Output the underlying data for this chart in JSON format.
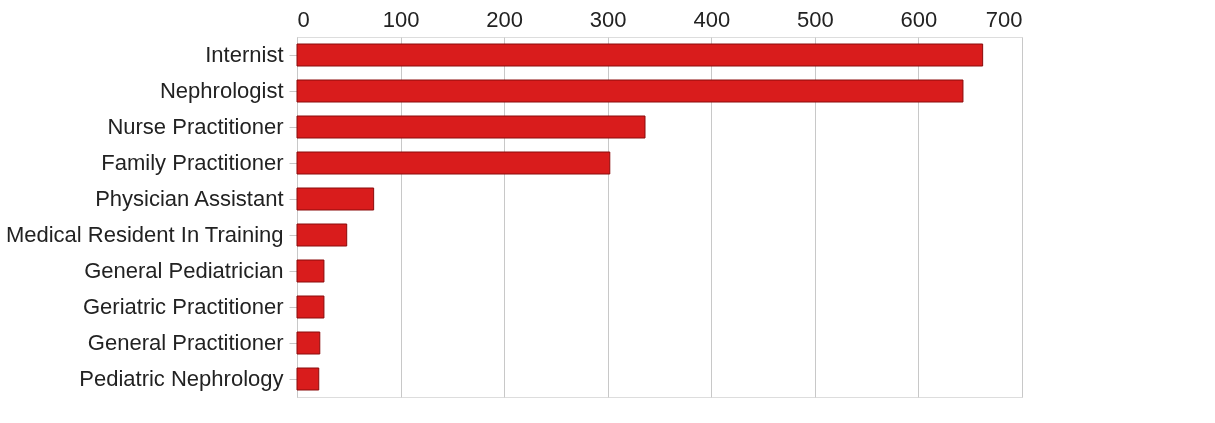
{
  "chart_data": {
    "type": "bar",
    "orientation": "horizontal",
    "categories": [
      "Internist",
      "Nephrologist",
      "Nurse Practitioner",
      "Family Practitioner",
      "Physician Assistant",
      "Medical Resident In Training",
      "General Pediatrician",
      "Geriatric Practitioner",
      "General Practitioner",
      "Pediatric Nephrology"
    ],
    "values": [
      662,
      643,
      336,
      302,
      74,
      48,
      26,
      26,
      22,
      21
    ],
    "color": "#d91c1c",
    "xlim": [
      0,
      700
    ],
    "xticks": [
      0,
      100,
      200,
      300,
      400,
      500,
      600,
      700
    ],
    "grid": "x"
  }
}
